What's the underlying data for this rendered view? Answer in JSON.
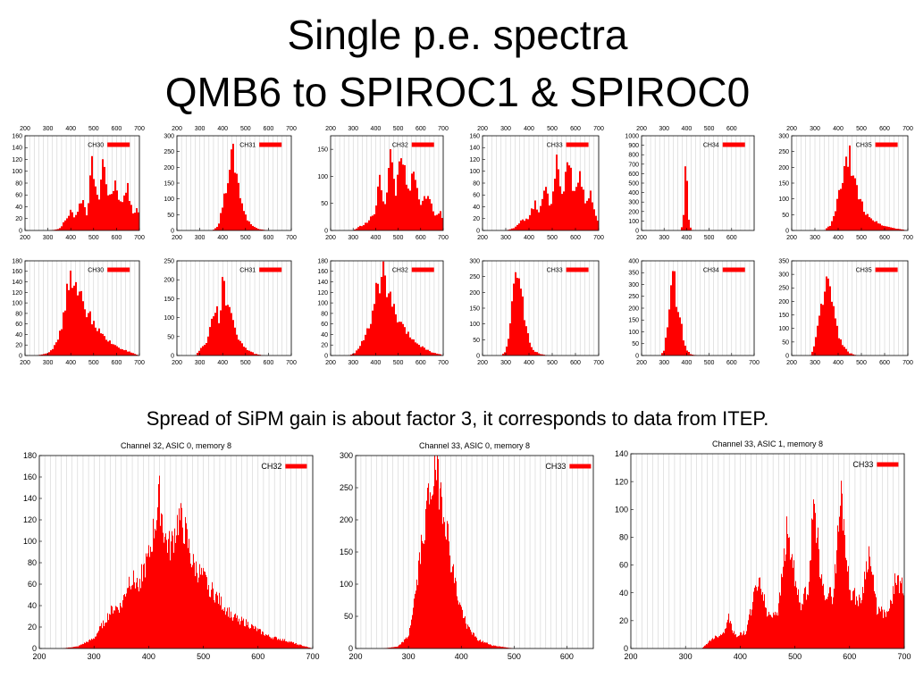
{
  "slide": {
    "title_line1": "Single p.e. spectra",
    "title_line2": "QMB6 to SPIROC1 & SPIROC0",
    "caption": "Spread of SiPM gain is about factor 3, it corresponds to data from ITEP."
  },
  "colors": {
    "bars": "#ff0000",
    "grid": "#c8c8c8",
    "frame": "#000000"
  },
  "chart_data": [
    {
      "type": "bar",
      "title": "",
      "legend": "CH30",
      "x_ticks": [
        200,
        300,
        400,
        500,
        600,
        700
      ],
      "y_ticks": [
        0,
        20,
        40,
        60,
        80,
        100,
        120,
        140,
        160
      ],
      "xlim": [
        200,
        700
      ],
      "ylim": [
        0,
        160
      ],
      "top_axis": true,
      "envelope": [
        [
          200,
          0
        ],
        [
          310,
          0
        ],
        [
          350,
          3
        ],
        [
          380,
          20
        ],
        [
          400,
          35
        ],
        [
          420,
          25
        ],
        [
          450,
          60
        ],
        [
          470,
          30
        ],
        [
          495,
          125
        ],
        [
          520,
          45
        ],
        [
          540,
          128
        ],
        [
          570,
          55
        ],
        [
          595,
          90
        ],
        [
          620,
          45
        ],
        [
          645,
          85
        ],
        [
          670,
          30
        ],
        [
          690,
          40
        ],
        [
          700,
          30
        ]
      ]
    },
    {
      "type": "bar",
      "title": "",
      "legend": "CH31",
      "x_ticks": [
        200,
        300,
        400,
        500,
        600,
        700
      ],
      "y_ticks": [
        0,
        50,
        100,
        150,
        200,
        250,
        300
      ],
      "xlim": [
        200,
        700
      ],
      "ylim": [
        0,
        300
      ],
      "top_axis": true,
      "envelope": [
        [
          200,
          0
        ],
        [
          355,
          0
        ],
        [
          380,
          15
        ],
        [
          410,
          120
        ],
        [
          430,
          230
        ],
        [
          445,
          260
        ],
        [
          460,
          200
        ],
        [
          480,
          110
        ],
        [
          500,
          50
        ],
        [
          530,
          15
        ],
        [
          560,
          5
        ],
        [
          600,
          0
        ],
        [
          700,
          0
        ]
      ]
    },
    {
      "type": "bar",
      "title": "",
      "legend": "CH32",
      "x_ticks": [
        200,
        300,
        400,
        500,
        600,
        700
      ],
      "y_ticks": [
        0,
        50,
        100,
        150
      ],
      "xlim": [
        200,
        700
      ],
      "ylim": [
        0,
        175
      ],
      "top_axis": true,
      "envelope": [
        [
          200,
          0
        ],
        [
          300,
          0
        ],
        [
          330,
          8
        ],
        [
          360,
          15
        ],
        [
          380,
          25
        ],
        [
          400,
          40
        ],
        [
          420,
          110
        ],
        [
          440,
          45
        ],
        [
          465,
          150
        ],
        [
          490,
          75
        ],
        [
          515,
          170
        ],
        [
          540,
          70
        ],
        [
          570,
          110
        ],
        [
          600,
          45
        ],
        [
          630,
          80
        ],
        [
          660,
          30
        ],
        [
          690,
          35
        ],
        [
          700,
          20
        ]
      ]
    },
    {
      "type": "bar",
      "title": "",
      "legend": "CH33",
      "x_ticks": [
        200,
        300,
        400,
        500,
        600,
        700
      ],
      "y_ticks": [
        0,
        20,
        40,
        60,
        80,
        100,
        120,
        140,
        160
      ],
      "xlim": [
        200,
        700
      ],
      "ylim": [
        0,
        160
      ],
      "top_axis": true,
      "envelope": [
        [
          200,
          0
        ],
        [
          300,
          0
        ],
        [
          340,
          5
        ],
        [
          370,
          18
        ],
        [
          400,
          25
        ],
        [
          425,
          50
        ],
        [
          440,
          30
        ],
        [
          470,
          90
        ],
        [
          490,
          35
        ],
        [
          520,
          130
        ],
        [
          545,
          55
        ],
        [
          570,
          150
        ],
        [
          595,
          60
        ],
        [
          620,
          105
        ],
        [
          645,
          45
        ],
        [
          665,
          70
        ],
        [
          685,
          25
        ],
        [
          700,
          20
        ]
      ]
    },
    {
      "type": "bar",
      "title": "",
      "legend": "CH34",
      "x_ticks": [
        200,
        300,
        400,
        500,
        600
      ],
      "y_ticks": [
        0,
        100,
        200,
        300,
        400,
        500,
        600,
        700,
        800,
        900,
        1000
      ],
      "xlim": [
        200,
        700
      ],
      "ylim": [
        0,
        1000
      ],
      "top_axis": true,
      "envelope": [
        [
          200,
          0
        ],
        [
          375,
          0
        ],
        [
          385,
          100
        ],
        [
          392,
          600
        ],
        [
          397,
          870
        ],
        [
          402,
          600
        ],
        [
          410,
          120
        ],
        [
          420,
          10
        ],
        [
          430,
          0
        ],
        [
          700,
          0
        ]
      ]
    },
    {
      "type": "bar",
      "title": "",
      "legend": "CH35",
      "x_ticks": [
        200,
        300,
        400,
        500,
        600,
        700
      ],
      "y_ticks": [
        0,
        50,
        100,
        150,
        200,
        250,
        300
      ],
      "xlim": [
        200,
        700
      ],
      "ylim": [
        0,
        300
      ],
      "top_axis": true,
      "envelope": [
        [
          200,
          0
        ],
        [
          340,
          0
        ],
        [
          370,
          20
        ],
        [
          390,
          70
        ],
        [
          410,
          150
        ],
        [
          430,
          210
        ],
        [
          450,
          250
        ],
        [
          470,
          170
        ],
        [
          490,
          110
        ],
        [
          520,
          60
        ],
        [
          560,
          30
        ],
        [
          600,
          15
        ],
        [
          640,
          8
        ],
        [
          700,
          0
        ]
      ]
    },
    {
      "type": "bar",
      "title": "",
      "legend": "CH30",
      "x_ticks": [
        200,
        300,
        400,
        500,
        600,
        700
      ],
      "y_ticks": [
        0,
        20,
        40,
        60,
        80,
        100,
        120,
        140,
        160,
        180
      ],
      "xlim": [
        200,
        700
      ],
      "ylim": [
        0,
        180
      ],
      "top_axis": false,
      "envelope": [
        [
          200,
          0
        ],
        [
          250,
          0
        ],
        [
          300,
          5
        ],
        [
          340,
          25
        ],
        [
          370,
          80
        ],
        [
          390,
          150
        ],
        [
          410,
          165
        ],
        [
          430,
          115
        ],
        [
          450,
          120
        ],
        [
          470,
          90
        ],
        [
          500,
          70
        ],
        [
          530,
          45
        ],
        [
          560,
          30
        ],
        [
          600,
          20
        ],
        [
          640,
          10
        ],
        [
          680,
          3
        ],
        [
          700,
          0
        ]
      ]
    },
    {
      "type": "bar",
      "title": "",
      "legend": "CH31",
      "x_ticks": [
        200,
        300,
        400,
        500,
        600,
        700
      ],
      "y_ticks": [
        0,
        50,
        100,
        150,
        200,
        250
      ],
      "xlim": [
        200,
        700
      ],
      "ylim": [
        0,
        250
      ],
      "top_axis": false,
      "envelope": [
        [
          200,
          0
        ],
        [
          280,
          0
        ],
        [
          300,
          15
        ],
        [
          330,
          40
        ],
        [
          350,
          90
        ],
        [
          370,
          140
        ],
        [
          385,
          100
        ],
        [
          400,
          200
        ],
        [
          420,
          150
        ],
        [
          435,
          140
        ],
        [
          450,
          80
        ],
        [
          470,
          50
        ],
        [
          500,
          20
        ],
        [
          540,
          5
        ],
        [
          580,
          0
        ],
        [
          700,
          0
        ]
      ]
    },
    {
      "type": "bar",
      "title": "",
      "legend": "CH32",
      "x_ticks": [
        200,
        300,
        400,
        500,
        600,
        700
      ],
      "y_ticks": [
        0,
        20,
        40,
        60,
        80,
        100,
        120,
        140,
        160,
        180
      ],
      "xlim": [
        200,
        700
      ],
      "ylim": [
        0,
        180
      ],
      "top_axis": false,
      "envelope": [
        [
          200,
          0
        ],
        [
          280,
          0
        ],
        [
          310,
          5
        ],
        [
          340,
          30
        ],
        [
          365,
          50
        ],
        [
          380,
          70
        ],
        [
          400,
          130
        ],
        [
          420,
          140
        ],
        [
          435,
          170
        ],
        [
          455,
          130
        ],
        [
          475,
          100
        ],
        [
          500,
          70
        ],
        [
          530,
          50
        ],
        [
          560,
          35
        ],
        [
          600,
          20
        ],
        [
          640,
          8
        ],
        [
          690,
          2
        ],
        [
          700,
          0
        ]
      ]
    },
    {
      "type": "bar",
      "title": "",
      "legend": "CH33",
      "x_ticks": [
        200,
        300,
        400,
        500,
        600,
        700
      ],
      "y_ticks": [
        0,
        50,
        100,
        150,
        200,
        250,
        300
      ],
      "xlim": [
        200,
        700
      ],
      "ylim": [
        0,
        300
      ],
      "top_axis": false,
      "envelope": [
        [
          200,
          0
        ],
        [
          280,
          0
        ],
        [
          300,
          15
        ],
        [
          320,
          100
        ],
        [
          335,
          230
        ],
        [
          345,
          295
        ],
        [
          355,
          270
        ],
        [
          370,
          200
        ],
        [
          385,
          120
        ],
        [
          400,
          50
        ],
        [
          420,
          15
        ],
        [
          450,
          5
        ],
        [
          480,
          0
        ],
        [
          700,
          0
        ]
      ]
    },
    {
      "type": "bar",
      "title": "",
      "legend": "CH34",
      "x_ticks": [
        200,
        300,
        400,
        500,
        600,
        700
      ],
      "y_ticks": [
        0,
        50,
        100,
        150,
        200,
        250,
        300,
        350,
        400
      ],
      "xlim": [
        200,
        700
      ],
      "ylim": [
        0,
        400
      ],
      "top_axis": false,
      "envelope": [
        [
          200,
          0
        ],
        [
          285,
          0
        ],
        [
          300,
          25
        ],
        [
          320,
          180
        ],
        [
          335,
          340
        ],
        [
          345,
          350
        ],
        [
          355,
          260
        ],
        [
          370,
          200
        ],
        [
          385,
          80
        ],
        [
          400,
          25
        ],
        [
          420,
          5
        ],
        [
          450,
          0
        ],
        [
          700,
          0
        ]
      ]
    },
    {
      "type": "bar",
      "title": "",
      "legend": "CH35",
      "x_ticks": [
        200,
        300,
        400,
        500,
        600,
        700
      ],
      "y_ticks": [
        0,
        50,
        100,
        150,
        200,
        250,
        300,
        350
      ],
      "xlim": [
        200,
        700
      ],
      "ylim": [
        0,
        350
      ],
      "top_axis": false,
      "envelope": [
        [
          200,
          0
        ],
        [
          280,
          0
        ],
        [
          300,
          40
        ],
        [
          320,
          160
        ],
        [
          340,
          250
        ],
        [
          355,
          300
        ],
        [
          370,
          210
        ],
        [
          385,
          160
        ],
        [
          400,
          90
        ],
        [
          420,
          40
        ],
        [
          450,
          10
        ],
        [
          480,
          0
        ],
        [
          700,
          0
        ]
      ]
    },
    {
      "type": "bar",
      "title": "Channel 32, ASIC 0, memory 8",
      "legend": "CH32",
      "x_ticks": [
        200,
        300,
        400,
        500,
        600,
        700
      ],
      "y_ticks": [
        0,
        20,
        40,
        60,
        80,
        100,
        120,
        140,
        160,
        180
      ],
      "xlim": [
        200,
        700
      ],
      "ylim": [
        0,
        180
      ],
      "top_axis": false,
      "envelope": [
        [
          200,
          0
        ],
        [
          240,
          0
        ],
        [
          270,
          2
        ],
        [
          300,
          10
        ],
        [
          320,
          28
        ],
        [
          335,
          40
        ],
        [
          350,
          42
        ],
        [
          365,
          70
        ],
        [
          380,
          65
        ],
        [
          400,
          90
        ],
        [
          410,
          120
        ],
        [
          420,
          150
        ],
        [
          430,
          110
        ],
        [
          440,
          100
        ],
        [
          455,
          130
        ],
        [
          465,
          120
        ],
        [
          480,
          85
        ],
        [
          500,
          70
        ],
        [
          520,
          55
        ],
        [
          540,
          40
        ],
        [
          560,
          30
        ],
        [
          580,
          25
        ],
        [
          600,
          18
        ],
        [
          620,
          12
        ],
        [
          650,
          8
        ],
        [
          680,
          3
        ],
        [
          700,
          0
        ]
      ]
    },
    {
      "type": "bar",
      "title": "Channel 33, ASIC 0, memory 8",
      "legend": "CH33",
      "x_ticks": [
        200,
        300,
        400,
        500,
        600
      ],
      "y_ticks": [
        0,
        50,
        100,
        150,
        200,
        250,
        300
      ],
      "xlim": [
        200,
        650
      ],
      "ylim": [
        0,
        300
      ],
      "top_axis": false,
      "envelope": [
        [
          200,
          0
        ],
        [
          250,
          0
        ],
        [
          280,
          3
        ],
        [
          300,
          20
        ],
        [
          315,
          100
        ],
        [
          330,
          210
        ],
        [
          340,
          260
        ],
        [
          350,
          295
        ],
        [
          360,
          270
        ],
        [
          370,
          220
        ],
        [
          380,
          150
        ],
        [
          395,
          80
        ],
        [
          410,
          40
        ],
        [
          430,
          15
        ],
        [
          460,
          5
        ],
        [
          500,
          0
        ],
        [
          650,
          0
        ]
      ]
    },
    {
      "type": "bar",
      "title": "Channel 33, ASIC 1, memory 8",
      "legend": "CH33",
      "x_ticks": [
        200,
        300,
        400,
        500,
        600,
        700
      ],
      "y_ticks": [
        0,
        20,
        40,
        60,
        80,
        100,
        120,
        140
      ],
      "xlim": [
        200,
        700
      ],
      "ylim": [
        0,
        140
      ],
      "top_axis": false,
      "envelope": [
        [
          200,
          0
        ],
        [
          330,
          0
        ],
        [
          350,
          8
        ],
        [
          370,
          12
        ],
        [
          378,
          25
        ],
        [
          390,
          10
        ],
        [
          410,
          12
        ],
        [
          425,
          40
        ],
        [
          435,
          55
        ],
        [
          450,
          25
        ],
        [
          470,
          30
        ],
        [
          485,
          90
        ],
        [
          495,
          70
        ],
        [
          510,
          30
        ],
        [
          525,
          50
        ],
        [
          535,
          115
        ],
        [
          550,
          45
        ],
        [
          570,
          40
        ],
        [
          585,
          120
        ],
        [
          600,
          45
        ],
        [
          620,
          35
        ],
        [
          635,
          75
        ],
        [
          650,
          30
        ],
        [
          670,
          25
        ],
        [
          685,
          55
        ],
        [
          700,
          45
        ]
      ]
    }
  ]
}
